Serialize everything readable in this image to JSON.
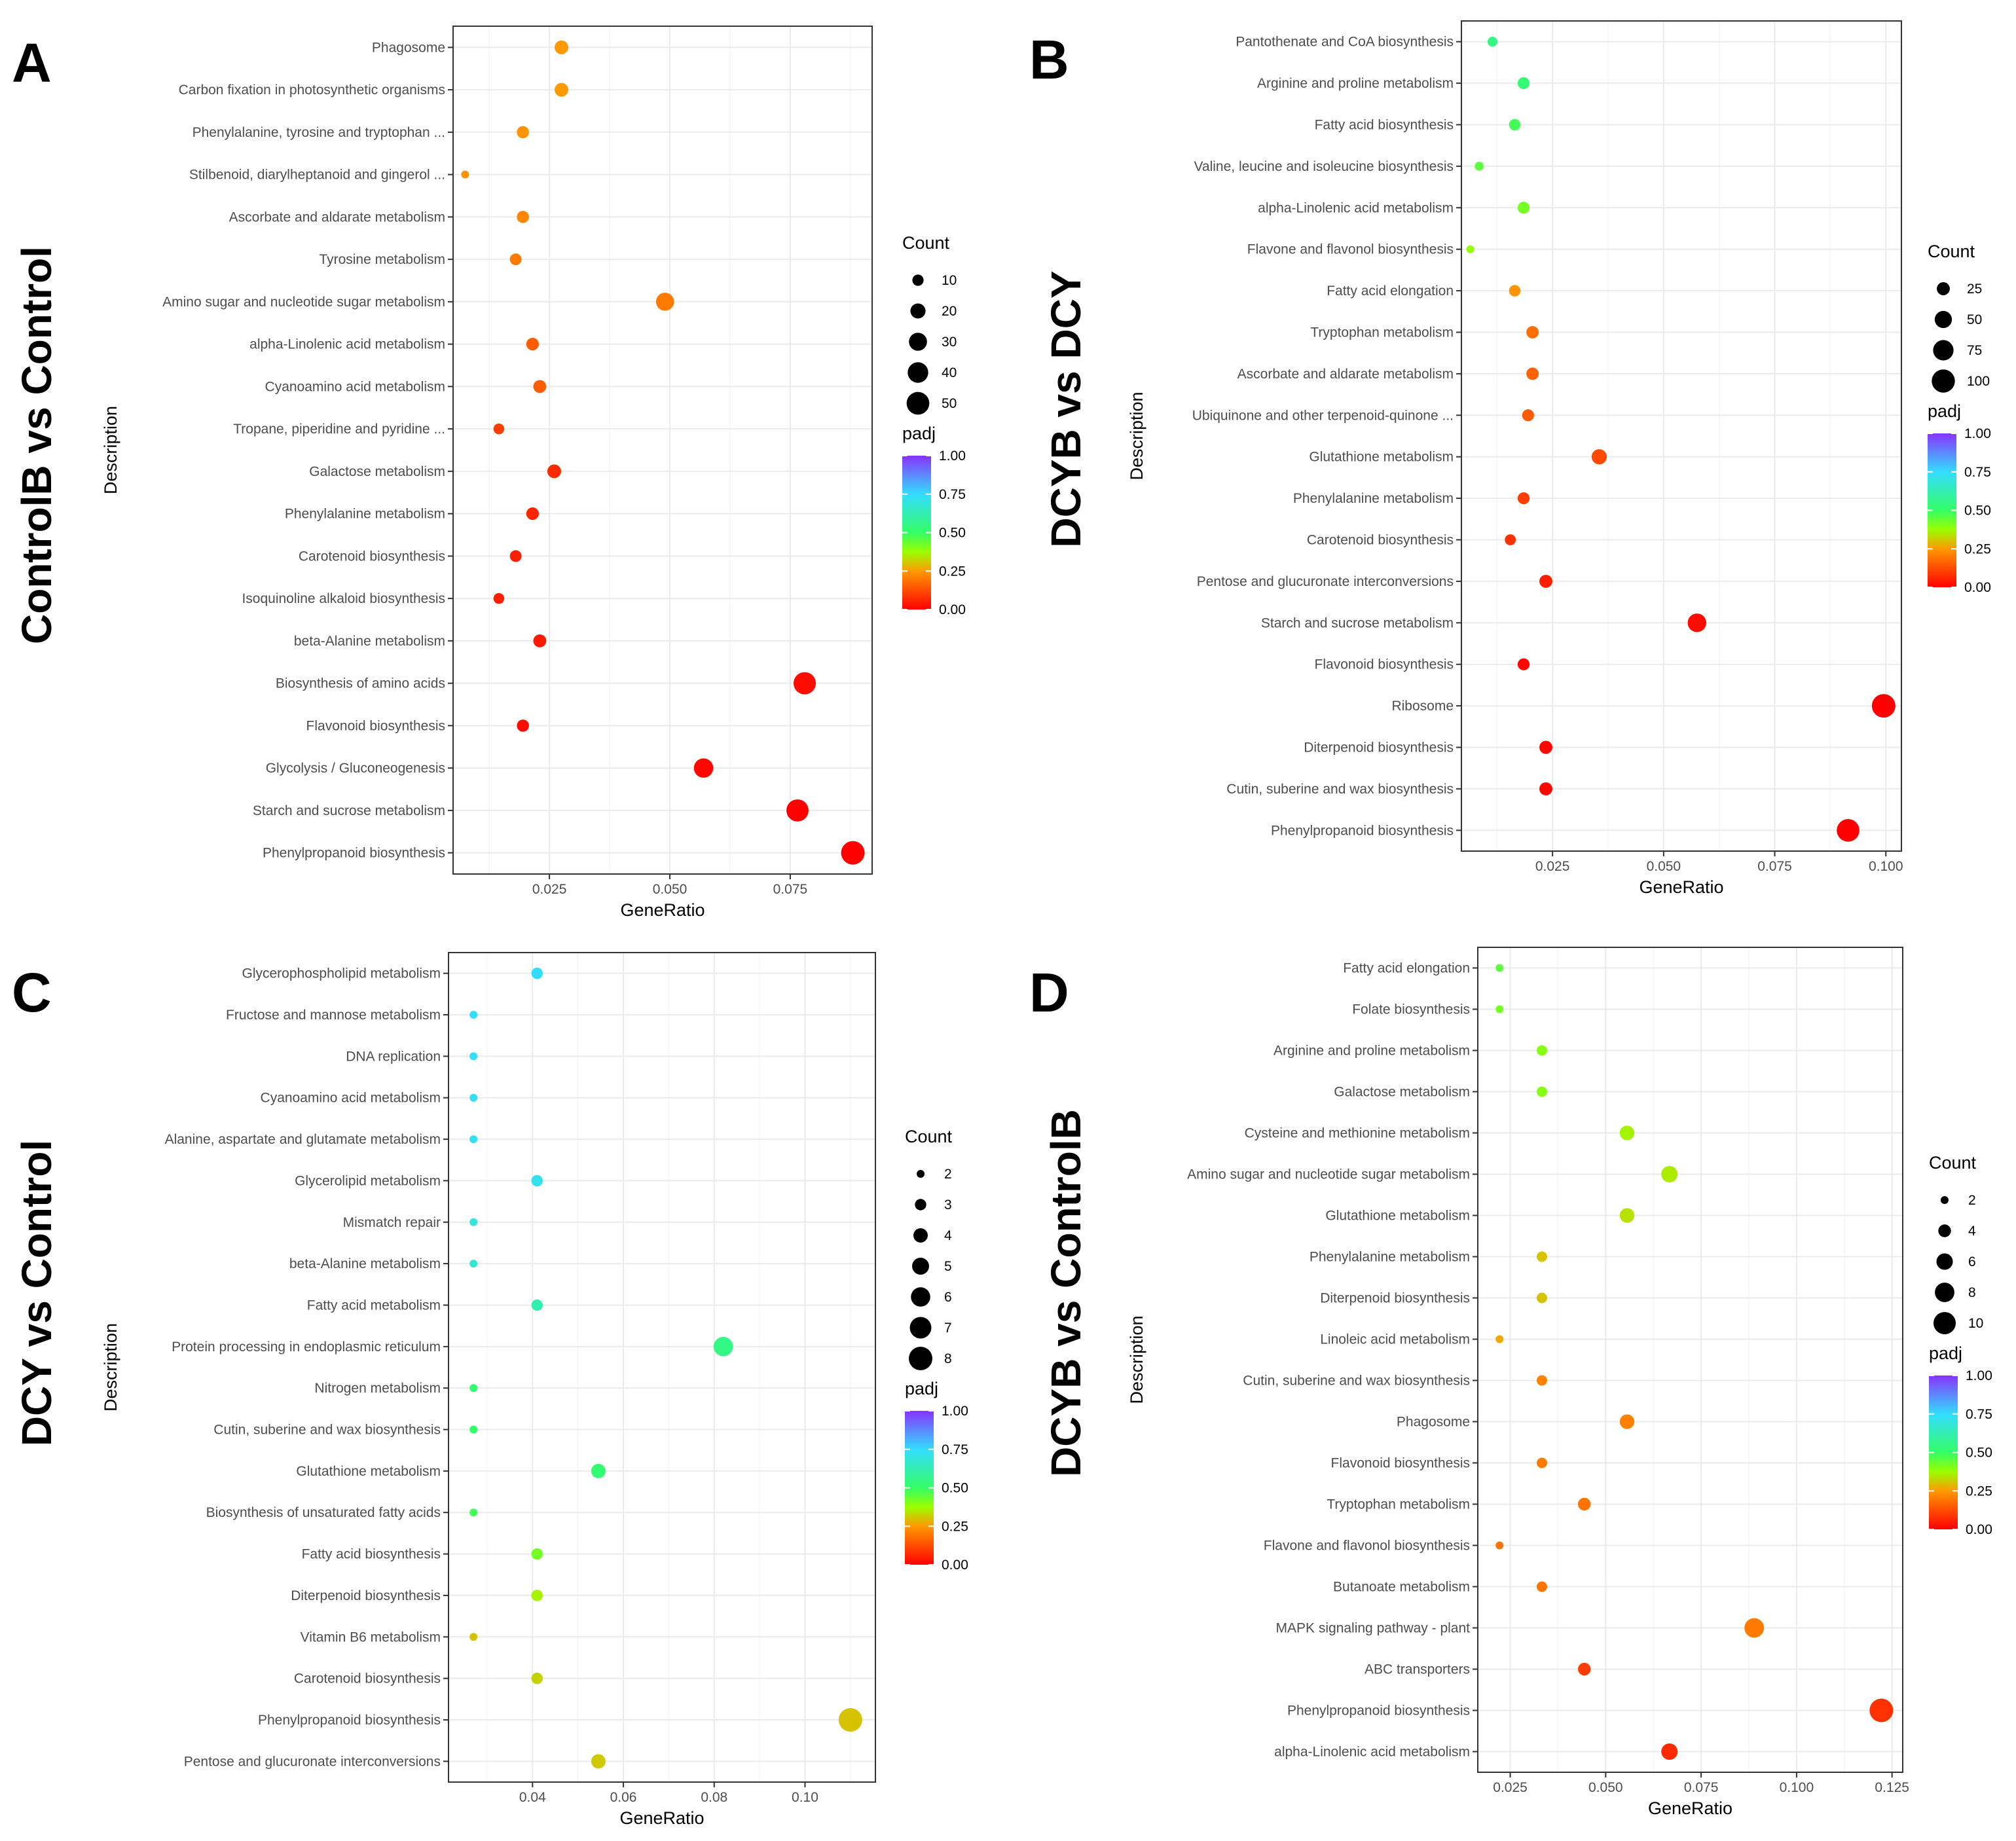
{
  "colorscale": {
    "stops": [
      {
        "v": 0.0,
        "c": "#ff0000"
      },
      {
        "v": 0.25,
        "c": "#ff9900"
      },
      {
        "v": 0.375,
        "c": "#99ff00"
      },
      {
        "v": 0.5,
        "c": "#33ff66"
      },
      {
        "v": 0.75,
        "c": "#33ddff"
      },
      {
        "v": 1.0,
        "c": "#8833ff"
      }
    ]
  },
  "chart_data": [
    {
      "type": "scatter",
      "panel": "A",
      "comparison": "ControlB vs Control",
      "xlabel": "GeneRatio",
      "ylabel": "Description",
      "xlim": [
        0.005,
        0.092
      ],
      "xticks": [
        0.025,
        0.05,
        0.075
      ],
      "xtick_labels": [
        "0.025",
        "0.050",
        "0.075"
      ],
      "size_legend": {
        "title": "Count",
        "values": [
          10,
          20,
          30,
          40,
          50
        ],
        "labels": [
          "10",
          "20",
          "30",
          "40",
          "50"
        ]
      },
      "color_legend": {
        "title": "padj",
        "min": 0,
        "max": 1,
        "labels": [
          "1.00",
          "0.75",
          "0.50",
          "0.25",
          "0.00"
        ]
      },
      "points": [
        {
          "term": "Phagosome",
          "generatio": 0.0275,
          "count": 16,
          "padj": 0.25
        },
        {
          "term": "Carbon fixation in photosynthetic organisms",
          "generatio": 0.0275,
          "count": 16,
          "padj": 0.25
        },
        {
          "term": "Phenylalanine, tyrosine and tryptophan ...",
          "generatio": 0.0195,
          "count": 12,
          "padj": 0.24
        },
        {
          "term": "Stilbenoid, diarylheptanoid and gingerol ...",
          "generatio": 0.0075,
          "count": 4,
          "padj": 0.24
        },
        {
          "term": "Ascorbate and aldarate metabolism",
          "generatio": 0.0195,
          "count": 12,
          "padj": 0.22
        },
        {
          "term": "Tyrosine metabolism",
          "generatio": 0.018,
          "count": 11,
          "padj": 0.2
        },
        {
          "term": "Amino sugar and nucleotide sugar metabolism",
          "generatio": 0.049,
          "count": 30,
          "padj": 0.2
        },
        {
          "term": "alpha-Linolenic acid metabolism",
          "generatio": 0.0215,
          "count": 13,
          "padj": 0.15
        },
        {
          "term": "Cyanoamino acid metabolism",
          "generatio": 0.023,
          "count": 14,
          "padj": 0.15
        },
        {
          "term": "Tropane, piperidine and pyridine ...",
          "generatio": 0.0145,
          "count": 9,
          "padj": 0.1
        },
        {
          "term": "Galactose metabolism",
          "generatio": 0.026,
          "count": 16,
          "padj": 0.07
        },
        {
          "term": "Phenylalanine metabolism",
          "generatio": 0.0215,
          "count": 13,
          "padj": 0.06
        },
        {
          "term": "Carotenoid biosynthesis",
          "generatio": 0.018,
          "count": 11,
          "padj": 0.05
        },
        {
          "term": "Isoquinoline alkaloid biosynthesis",
          "generatio": 0.0145,
          "count": 9,
          "padj": 0.05
        },
        {
          "term": "beta-Alanine metabolism",
          "generatio": 0.023,
          "count": 14,
          "padj": 0.04
        },
        {
          "term": "Biosynthesis of amino acids",
          "generatio": 0.078,
          "count": 48,
          "padj": 0.02
        },
        {
          "term": "Flavonoid biosynthesis",
          "generatio": 0.0195,
          "count": 12,
          "padj": 0.02
        },
        {
          "term": "Glycolysis / Gluconeogenesis",
          "generatio": 0.057,
          "count": 35,
          "padj": 0.01
        },
        {
          "term": "Starch and sucrose metabolism",
          "generatio": 0.0765,
          "count": 47,
          "padj": 0.0
        },
        {
          "term": "Phenylpropanoid biosynthesis",
          "generatio": 0.088,
          "count": 54,
          "padj": 0.0
        }
      ]
    },
    {
      "type": "scatter",
      "panel": "B",
      "comparison": "DCYB vs DCY",
      "xlabel": "GeneRatio",
      "ylabel": "Description",
      "xlim": [
        0.0045,
        0.1035
      ],
      "xticks": [
        0.025,
        0.05,
        0.075,
        0.1
      ],
      "xtick_labels": [
        "0.025",
        "0.050",
        "0.075",
        "0.100"
      ],
      "size_legend": {
        "title": "Count",
        "values": [
          25,
          50,
          75,
          100
        ],
        "labels": [
          "25",
          "50",
          "75",
          "100"
        ]
      },
      "color_legend": {
        "title": "padj",
        "min": 0,
        "max": 1,
        "labels": [
          "1.00",
          "0.75",
          "0.50",
          "0.25",
          "0.00"
        ]
      },
      "points": [
        {
          "term": "Pantothenate and CoA biosynthesis",
          "generatio": 0.0115,
          "count": 12,
          "padj": 0.55
        },
        {
          "term": "Arginine and proline metabolism",
          "generatio": 0.0185,
          "count": 20,
          "padj": 0.52
        },
        {
          "term": "Fatty acid biosynthesis",
          "generatio": 0.0165,
          "count": 18,
          "padj": 0.48
        },
        {
          "term": "Valine, leucine and isoleucine biosynthesis",
          "generatio": 0.0085,
          "count": 9,
          "padj": 0.45
        },
        {
          "term": "alpha-Linolenic acid metabolism",
          "generatio": 0.0185,
          "count": 20,
          "padj": 0.42
        },
        {
          "term": "Flavone and flavonol biosynthesis",
          "generatio": 0.0065,
          "count": 6,
          "padj": 0.38
        },
        {
          "term": "Fatty acid elongation",
          "generatio": 0.0165,
          "count": 18,
          "padj": 0.24
        },
        {
          "term": "Tryptophan metabolism",
          "generatio": 0.0205,
          "count": 22,
          "padj": 0.18
        },
        {
          "term": "Ascorbate and aldarate metabolism",
          "generatio": 0.0205,
          "count": 22,
          "padj": 0.16
        },
        {
          "term": "Ubiquinone and other terpenoid-quinone ...",
          "generatio": 0.0195,
          "count": 20,
          "padj": 0.15
        },
        {
          "term": "Glutathione metabolism",
          "generatio": 0.0355,
          "count": 37,
          "padj": 0.12
        },
        {
          "term": "Phenylalanine metabolism",
          "generatio": 0.0185,
          "count": 20,
          "padj": 0.1
        },
        {
          "term": "Carotenoid biosynthesis",
          "generatio": 0.0155,
          "count": 16,
          "padj": 0.08
        },
        {
          "term": "Pentose and glucuronate interconversions",
          "generatio": 0.0235,
          "count": 25,
          "padj": 0.05
        },
        {
          "term": "Starch and sucrose metabolism",
          "generatio": 0.0575,
          "count": 60,
          "padj": 0.02
        },
        {
          "term": "Flavonoid biosynthesis",
          "generatio": 0.0185,
          "count": 20,
          "padj": 0.01
        },
        {
          "term": "Ribosome",
          "generatio": 0.0995,
          "count": 104,
          "padj": 0.0
        },
        {
          "term": "Diterpenoid biosynthesis",
          "generatio": 0.0235,
          "count": 25,
          "padj": 0.01
        },
        {
          "term": "Cutin, suberine and wax biosynthesis",
          "generatio": 0.0235,
          "count": 25,
          "padj": 0.01
        },
        {
          "term": "Phenylpropanoid biosynthesis",
          "generatio": 0.0915,
          "count": 95,
          "padj": 0.0
        }
      ]
    },
    {
      "type": "scatter",
      "panel": "C",
      "comparison": "DCY vs Control",
      "xlabel": "GeneRatio",
      "ylabel": "Description",
      "xlim": [
        0.0215,
        0.1155
      ],
      "xticks": [
        0.04,
        0.06,
        0.08,
        0.1
      ],
      "xtick_labels": [
        "0.04",
        "0.06",
        "0.08",
        "0.10"
      ],
      "size_legend": {
        "title": "Count",
        "values": [
          2,
          3,
          4,
          5,
          6,
          7,
          8
        ],
        "labels": [
          "2",
          "3",
          "4",
          "5",
          "6",
          "7",
          "8"
        ]
      },
      "color_legend": {
        "title": "padj",
        "min": 0,
        "max": 1,
        "labels": [
          "1.00",
          "0.75",
          "0.50",
          "0.25",
          "0.00"
        ]
      },
      "points": [
        {
          "term": "Glycerophospholipid metabolism",
          "generatio": 0.041,
          "count": 3,
          "padj": 0.75
        },
        {
          "term": "Fructose and mannose metabolism",
          "generatio": 0.027,
          "count": 2,
          "padj": 0.75
        },
        {
          "term": "DNA replication",
          "generatio": 0.027,
          "count": 2,
          "padj": 0.74
        },
        {
          "term": "Cyanoamino acid metabolism",
          "generatio": 0.027,
          "count": 2,
          "padj": 0.74
        },
        {
          "term": "Alanine, aspartate and glutamate metabolism",
          "generatio": 0.027,
          "count": 2,
          "padj": 0.73
        },
        {
          "term": "Glycerolipid metabolism",
          "generatio": 0.041,
          "count": 3,
          "padj": 0.72
        },
        {
          "term": "Mismatch repair",
          "generatio": 0.027,
          "count": 2,
          "padj": 0.7
        },
        {
          "term": "beta-Alanine metabolism",
          "generatio": 0.027,
          "count": 2,
          "padj": 0.68
        },
        {
          "term": "Fatty acid metabolism",
          "generatio": 0.041,
          "count": 3,
          "padj": 0.62
        },
        {
          "term": "Protein processing in endoplasmic reticulum",
          "generatio": 0.082,
          "count": 6,
          "padj": 0.55
        },
        {
          "term": "Nitrogen metabolism",
          "generatio": 0.027,
          "count": 2,
          "padj": 0.52
        },
        {
          "term": "Cutin, suberine and wax biosynthesis",
          "generatio": 0.027,
          "count": 2,
          "padj": 0.5
        },
        {
          "term": "Glutathione metabolism",
          "generatio": 0.0545,
          "count": 4,
          "padj": 0.52
        },
        {
          "term": "Biosynthesis of unsaturated fatty acids",
          "generatio": 0.027,
          "count": 2,
          "padj": 0.48
        },
        {
          "term": "Fatty acid biosynthesis",
          "generatio": 0.041,
          "count": 3,
          "padj": 0.42
        },
        {
          "term": "Diterpenoid biosynthesis",
          "generatio": 0.041,
          "count": 3,
          "padj": 0.36
        },
        {
          "term": "Vitamin B6 metabolism",
          "generatio": 0.027,
          "count": 2,
          "padj": 0.3
        },
        {
          "term": "Carotenoid biosynthesis",
          "generatio": 0.041,
          "count": 3,
          "padj": 0.32
        },
        {
          "term": "Phenylpropanoid biosynthesis",
          "generatio": 0.11,
          "count": 8,
          "padj": 0.3
        },
        {
          "term": "Pentose and glucuronate interconversions",
          "generatio": 0.0545,
          "count": 4,
          "padj": 0.31
        }
      ]
    },
    {
      "type": "scatter",
      "panel": "D",
      "comparison": "DCYB vs ControlB",
      "xlabel": "GeneRatio",
      "ylabel": "Description",
      "xlim": [
        0.0165,
        0.1278
      ],
      "xticks": [
        0.025,
        0.05,
        0.075,
        0.1,
        0.125
      ],
      "xtick_labels": [
        "0.025",
        "0.050",
        "0.075",
        "0.100",
        "0.125"
      ],
      "size_legend": {
        "title": "Count",
        "values": [
          2,
          4,
          6,
          8,
          10
        ],
        "labels": [
          "2",
          "4",
          "6",
          "8",
          "10"
        ]
      },
      "color_legend": {
        "title": "padj",
        "min": 0,
        "max": 1,
        "labels": [
          "1.00",
          "0.75",
          "0.50",
          "0.25",
          "0.00"
        ]
      },
      "points": [
        {
          "term": "Fatty acid elongation",
          "generatio": 0.0222,
          "count": 2,
          "padj": 0.45
        },
        {
          "term": "Folate biosynthesis",
          "generatio": 0.0222,
          "count": 2,
          "padj": 0.42
        },
        {
          "term": "Arginine and proline metabolism",
          "generatio": 0.0333,
          "count": 3,
          "padj": 0.4
        },
        {
          "term": "Galactose metabolism",
          "generatio": 0.0333,
          "count": 3,
          "padj": 0.4
        },
        {
          "term": "Cysteine and methionine metabolism",
          "generatio": 0.0556,
          "count": 5,
          "padj": 0.36
        },
        {
          "term": "Amino sugar and nucleotide sugar metabolism",
          "generatio": 0.0667,
          "count": 6,
          "padj": 0.35
        },
        {
          "term": "Glutathione metabolism",
          "generatio": 0.0556,
          "count": 5,
          "padj": 0.34
        },
        {
          "term": "Phenylalanine metabolism",
          "generatio": 0.0333,
          "count": 3,
          "padj": 0.3
        },
        {
          "term": "Diterpenoid biosynthesis",
          "generatio": 0.0333,
          "count": 3,
          "padj": 0.3
        },
        {
          "term": "Linoleic acid metabolism",
          "generatio": 0.0222,
          "count": 2,
          "padj": 0.27
        },
        {
          "term": "Cutin, suberine and wax biosynthesis",
          "generatio": 0.0333,
          "count": 3,
          "padj": 0.21
        },
        {
          "term": "Phagosome",
          "generatio": 0.0556,
          "count": 5,
          "padj": 0.21
        },
        {
          "term": "Flavonoid biosynthesis",
          "generatio": 0.0333,
          "count": 3,
          "padj": 0.2
        },
        {
          "term": "Tryptophan metabolism",
          "generatio": 0.0444,
          "count": 4,
          "padj": 0.19
        },
        {
          "term": "Flavone and flavonol biosynthesis",
          "generatio": 0.0222,
          "count": 2,
          "padj": 0.19
        },
        {
          "term": "Butanoate metabolism",
          "generatio": 0.0333,
          "count": 3,
          "padj": 0.19
        },
        {
          "term": "MAPK signaling pathway - plant",
          "generatio": 0.0889,
          "count": 8,
          "padj": 0.2
        },
        {
          "term": "ABC transporters",
          "generatio": 0.0444,
          "count": 4,
          "padj": 0.1
        },
        {
          "term": "Phenylpropanoid biosynthesis",
          "generatio": 0.1222,
          "count": 11,
          "padj": 0.08
        },
        {
          "term": "alpha-Linolenic acid metabolism",
          "generatio": 0.0667,
          "count": 6,
          "padj": 0.07
        }
      ]
    }
  ]
}
